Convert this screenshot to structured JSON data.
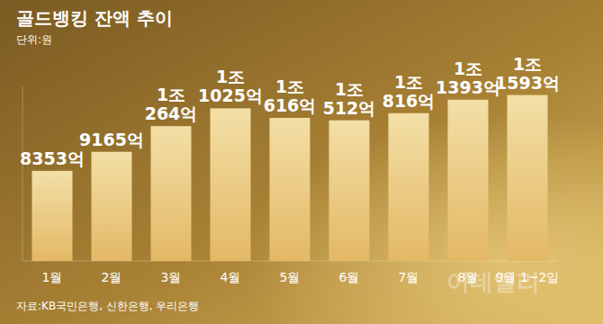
{
  "chart_data": {
    "type": "bar",
    "title": "골드뱅킹 잔액 추이",
    "subtitle": "단위:원",
    "source": "자료:KB국민은행, 신한은행, 우리은행",
    "annotations": [
      "이데일리"
    ],
    "categories": [
      "1월",
      "2월",
      "3월",
      "4월",
      "5월",
      "6월",
      "7월",
      "8월",
      "9월 1~2일"
    ],
    "values": [
      8353,
      9165,
      10264,
      11025,
      10616,
      10512,
      10816,
      11393,
      11593
    ],
    "value_labels": [
      "8353억",
      "9165억",
      "1조 264억",
      "1조 1025억",
      "1조 616억",
      "1조 512억",
      "1조 816억",
      "1조 1393억",
      "1조 1593억"
    ],
    "color": "#f3dfa6",
    "ylim": [
      4500,
      12000
    ],
    "data_labels": true,
    "tick_labels": "x",
    "grid": false
  }
}
